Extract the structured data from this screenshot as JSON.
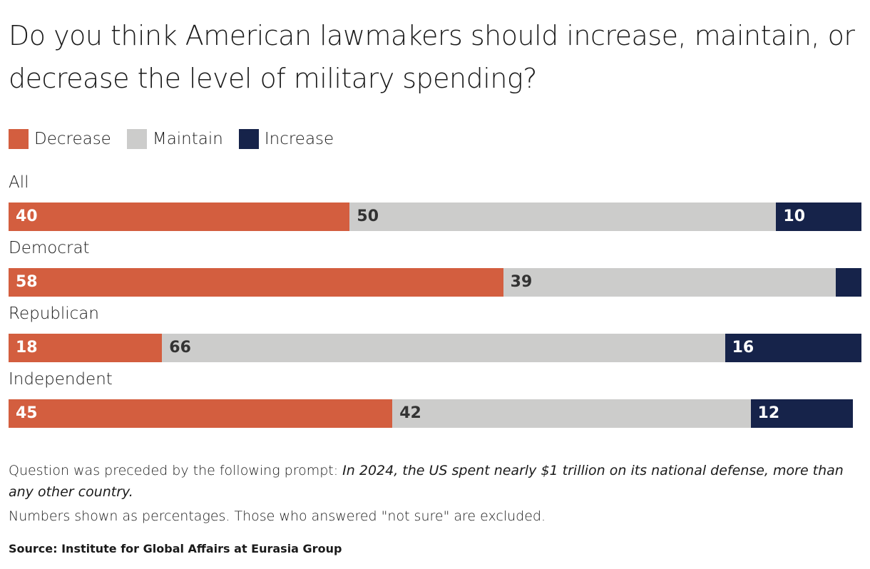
{
  "chart_data": {
    "type": "bar",
    "orientation": "horizontal-stacked",
    "title": "Do you think American lawmakers should increase, maintain, or decrease the level of military spending?",
    "categories": [
      "All",
      "Democrat",
      "Republican",
      "Independent"
    ],
    "series": [
      {
        "name": "Decrease",
        "color": "#d35e3f",
        "label_color": "#ffffff",
        "values": [
          40,
          58,
          18,
          45
        ]
      },
      {
        "name": "Maintain",
        "color": "#cccccb",
        "label_color": "#333333",
        "values": [
          50,
          39,
          66,
          42
        ]
      },
      {
        "name": "Increase",
        "color": "#16234a",
        "label_color": "#ffffff",
        "values": [
          10,
          3,
          16,
          12
        ]
      }
    ],
    "xlim": [
      0,
      100
    ],
    "grid": false,
    "legend": "top-left"
  },
  "notes": {
    "prompt_lead": "Question was preceded by the following prompt: ",
    "prompt_text": "In 2024, the US spent nearly $1 trillion on its national defense, more than any other country.",
    "units": "Numbers shown as percentages. Those who answered \"not sure\" are excluded."
  },
  "source": "Source: Institute for Global Affairs at Eurasia Group"
}
